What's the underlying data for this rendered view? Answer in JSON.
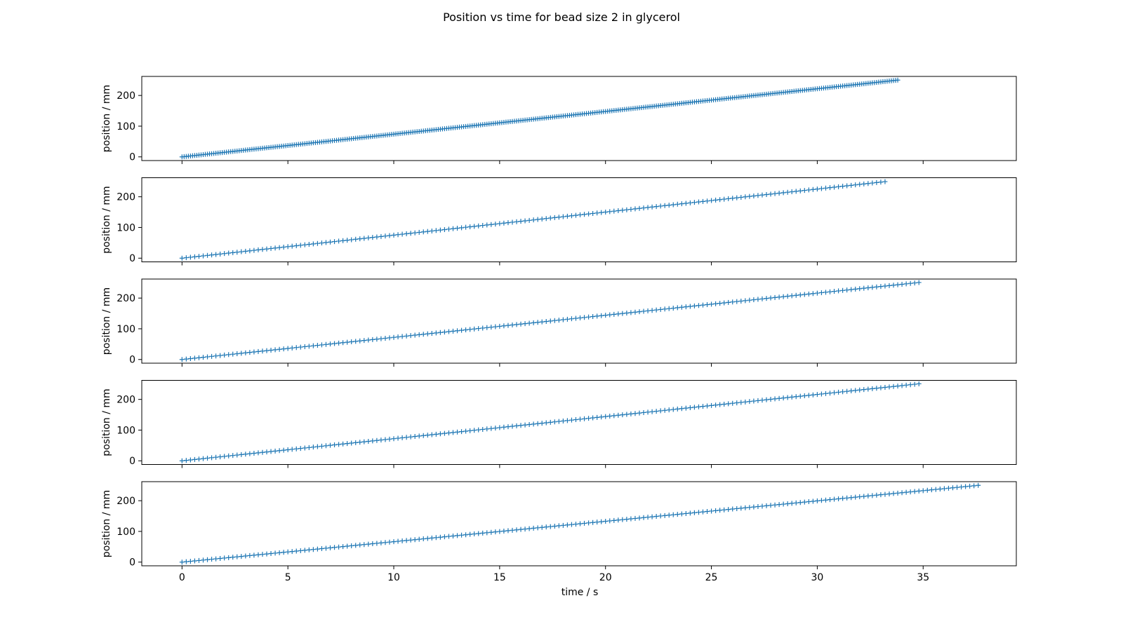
{
  "figure": {
    "title": "Position vs time for bead size 2 in glycerol",
    "xlabel": "time / s",
    "ylabel": "position / mm",
    "marker_color": "#1f77b4"
  },
  "chart_data": [
    {
      "type": "scatter",
      "marker": "+",
      "xlim": [
        -1.9,
        39.4
      ],
      "ylim": [
        -12,
        262
      ],
      "xticks": [
        0,
        5,
        10,
        15,
        20,
        25,
        30,
        35
      ],
      "yticks": [
        0,
        100,
        200
      ],
      "ylabel": "position / mm",
      "xlabel": "",
      "series": [
        {
          "x_start": 0,
          "x_end": 33.8,
          "y_start": 0,
          "y_end": 250,
          "step": 0.1
        }
      ]
    },
    {
      "type": "scatter",
      "marker": "+",
      "xlim": [
        -1.9,
        39.4
      ],
      "ylim": [
        -12,
        262
      ],
      "xticks": [
        0,
        5,
        10,
        15,
        20,
        25,
        30,
        35
      ],
      "yticks": [
        0,
        100,
        200
      ],
      "ylabel": "position / mm",
      "xlabel": "",
      "series": [
        {
          "x_start": 0,
          "x_end": 33.3,
          "y_start": 0,
          "y_end": 250,
          "step": 0.2
        }
      ]
    },
    {
      "type": "scatter",
      "marker": "+",
      "xlim": [
        -1.9,
        39.4
      ],
      "ylim": [
        -12,
        262
      ],
      "xticks": [
        0,
        5,
        10,
        15,
        20,
        25,
        30,
        35
      ],
      "yticks": [
        0,
        100,
        200
      ],
      "ylabel": "position / mm",
      "xlabel": "",
      "series": [
        {
          "x_start": 0,
          "x_end": 34.7,
          "y_start": 0,
          "y_end": 250,
          "step": 0.2
        }
      ]
    },
    {
      "type": "scatter",
      "marker": "+",
      "xlim": [
        -1.9,
        39.4
      ],
      "ylim": [
        -12,
        262
      ],
      "xticks": [
        0,
        5,
        10,
        15,
        20,
        25,
        30,
        35
      ],
      "yticks": [
        0,
        100,
        200
      ],
      "ylabel": "position / mm",
      "xlabel": "",
      "series": [
        {
          "x_start": 0,
          "x_end": 34.7,
          "y_start": 0,
          "y_end": 250,
          "step": 0.2
        }
      ]
    },
    {
      "type": "scatter",
      "marker": "+",
      "xlim": [
        -1.9,
        39.4
      ],
      "ylim": [
        -12,
        262
      ],
      "xticks": [
        0,
        5,
        10,
        15,
        20,
        25,
        30,
        35
      ],
      "yticks": [
        0,
        100,
        200
      ],
      "ylabel": "position / mm",
      "xlabel": "time / s",
      "series": [
        {
          "x_start": 0,
          "x_end": 37.6,
          "y_start": 0,
          "y_end": 250,
          "step": 0.2
        }
      ]
    }
  ]
}
